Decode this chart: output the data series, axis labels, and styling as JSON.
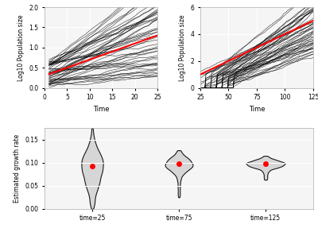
{
  "top_left": {
    "xlabel": "Time",
    "ylabel": "Log10 Population size",
    "xlim": [
      0,
      25
    ],
    "ylim": [
      0,
      2.0
    ],
    "n_lines": 50,
    "time_end": 25,
    "true_r": 0.04,
    "start_log10": 0.3,
    "bg_color": "#f5f5f5",
    "grid_color": "#ffffff",
    "line_color": "#000000",
    "red_color": "#ff0000",
    "yticks": [
      0.0,
      0.5,
      1.0,
      1.5,
      2.0
    ],
    "xticks": [
      0,
      5,
      10,
      15,
      20,
      25
    ]
  },
  "top_right": {
    "xlabel": "Time",
    "ylabel": "Log10 Population size",
    "xlim": [
      25,
      125
    ],
    "ylim": [
      0,
      6
    ],
    "n_lines": 50,
    "time_start": 25,
    "time_end": 125,
    "true_r": 0.04,
    "start_log10": 1.0,
    "bg_color": "#f5f5f5",
    "grid_color": "#ffffff",
    "line_color": "#000000",
    "red_color": "#ff0000",
    "yticks": [
      0,
      2,
      4,
      6
    ],
    "xticks": [
      25,
      50,
      75,
      100,
      125
    ]
  },
  "bottom": {
    "ylabel": "Estimated growth rate",
    "categories": [
      "time=25",
      "time=75",
      "time=125"
    ],
    "medians": [
      0.093,
      0.097,
      0.098
    ],
    "violin_data_25": {
      "mean": 0.093,
      "std": 0.032,
      "min": 0.0,
      "max": 0.175,
      "tail_low": true
    },
    "violin_data_75": {
      "mean": 0.097,
      "std": 0.013,
      "min": 0.025,
      "max": 0.127,
      "tail_low": true
    },
    "violin_data_125": {
      "mean": 0.098,
      "std": 0.007,
      "min": 0.063,
      "max": 0.115,
      "tail_low": true
    },
    "ylim": [
      0.0,
      0.175
    ],
    "yticks": [
      0.0,
      0.05,
      0.1,
      0.15
    ],
    "bg_color": "#f5f5f5",
    "grid_color": "#ffffff",
    "red_color": "#ff0000",
    "violin_fill": "#d3d3d3",
    "violin_edge": "#000000"
  }
}
